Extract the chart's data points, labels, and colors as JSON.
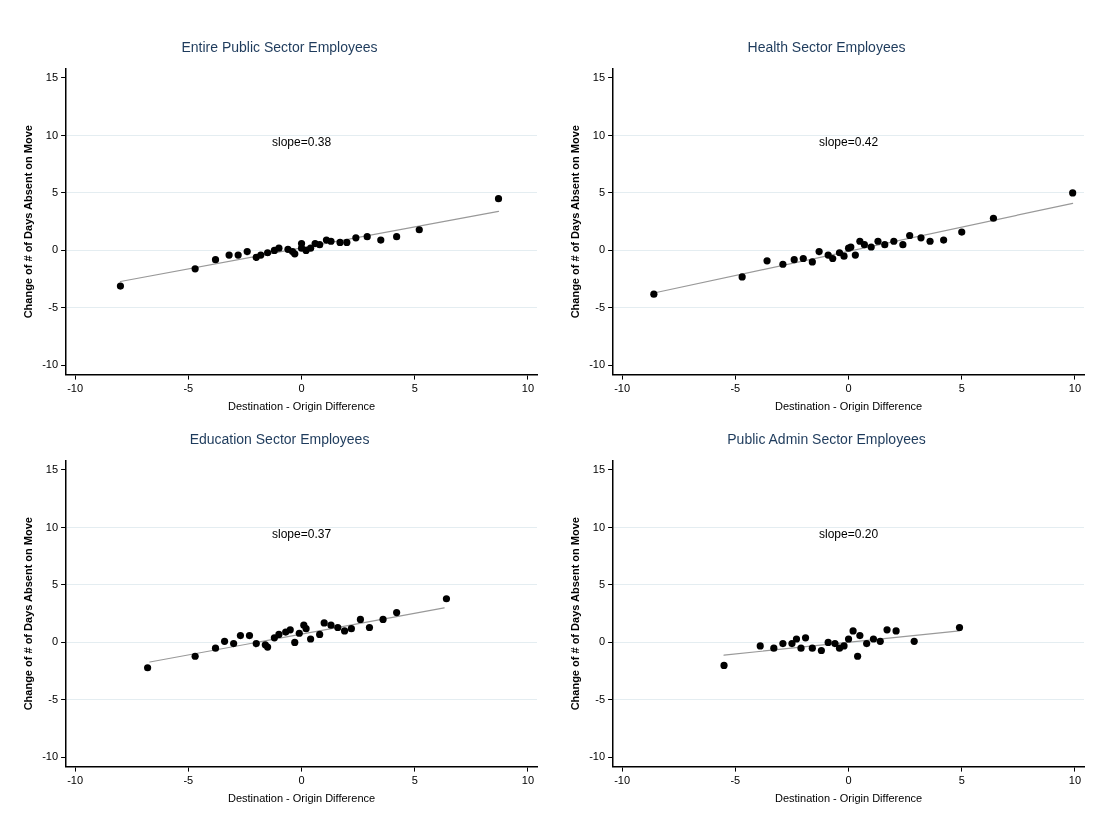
{
  "chart_data": [
    {
      "type": "scatter",
      "title": "Entire Public Sector Employees",
      "xlabel": "Destination - Origin Difference",
      "ylabel": "Change of # of Days Absent on Move",
      "annotations": [
        "slope=0.38"
      ],
      "xlim": [
        -10.4,
        10.4
      ],
      "xticks": [
        -10,
        -5,
        0,
        5,
        10
      ],
      "ylim": [
        -10.8,
        15.8
      ],
      "yticks": [
        -10,
        -5,
        0,
        5,
        10,
        15
      ],
      "grid": "y",
      "series": [
        {
          "color": "#000000",
          "marker": "circle",
          "x": [
            -8.0,
            -4.7,
            -3.8,
            -3.2,
            -2.8,
            -2.4,
            -2.0,
            -1.8,
            -1.5,
            -1.2,
            -1.0,
            -0.6,
            -0.4,
            -0.3,
            0.0,
            0.0,
            0.2,
            0.4,
            0.6,
            0.8,
            1.1,
            1.3,
            1.7,
            2.0,
            2.4,
            2.9,
            3.5,
            4.2,
            5.2,
            8.7
          ],
          "values": [
            -3.1,
            -1.6,
            -0.8,
            -0.4,
            -0.4,
            -0.1,
            -0.6,
            -0.4,
            -0.2,
            0.0,
            0.2,
            0.1,
            -0.1,
            -0.3,
            0.6,
            0.2,
            0.0,
            0.2,
            0.6,
            0.5,
            0.9,
            0.8,
            0.7,
            0.7,
            1.1,
            1.2,
            0.9,
            1.2,
            1.8,
            4.5
          ]
        },
        {
          "type": "line",
          "color": "#999999",
          "marker": "none",
          "x": [
            -8.0,
            8.7
          ],
          "values": [
            -2.7,
            3.4
          ]
        }
      ]
    },
    {
      "type": "scatter",
      "title": "Health Sector Employees",
      "xlabel": "Destination - Origin Difference",
      "ylabel": "Change of # of Days Absent on Move",
      "annotations": [
        "slope=0.42"
      ],
      "xlim": [
        -10.4,
        10.4
      ],
      "xticks": [
        -10,
        -5,
        0,
        5,
        10
      ],
      "ylim": [
        -10.8,
        15.8
      ],
      "yticks": [
        -10,
        -5,
        0,
        5,
        10,
        15
      ],
      "grid": "y",
      "series": [
        {
          "color": "#000000",
          "marker": "circle",
          "x": [
            -8.6,
            -4.7,
            -3.6,
            -2.9,
            -2.4,
            -2.0,
            -1.6,
            -1.3,
            -0.9,
            -0.7,
            -0.4,
            -0.2,
            0.0,
            0.1,
            0.3,
            0.5,
            0.7,
            1.0,
            1.3,
            1.6,
            2.0,
            2.4,
            2.7,
            3.2,
            3.6,
            4.2,
            5.0,
            6.4,
            9.9
          ],
          "values": [
            -3.8,
            -2.3,
            -0.9,
            -1.2,
            -0.8,
            -0.7,
            -1.0,
            -0.1,
            -0.4,
            -0.7,
            -0.2,
            -0.5,
            0.2,
            0.3,
            -0.4,
            0.8,
            0.5,
            0.3,
            0.8,
            0.5,
            0.8,
            0.5,
            1.3,
            1.1,
            0.8,
            0.9,
            1.6,
            2.8,
            5.0
          ]
        },
        {
          "type": "line",
          "color": "#999999",
          "marker": "none",
          "x": [
            -8.6,
            9.9
          ],
          "values": [
            -3.7,
            4.1
          ]
        }
      ]
    },
    {
      "type": "scatter",
      "title": "Education Sector Employees",
      "xlabel": "Destination - Origin Difference",
      "ylabel": "Change of # of Days Absent on Move",
      "annotations": [
        "slope=0.37"
      ],
      "xlim": [
        -10.4,
        10.4
      ],
      "xticks": [
        -10,
        -5,
        0,
        5,
        10
      ],
      "ylim": [
        -10.8,
        15.8
      ],
      "yticks": [
        -10,
        -5,
        0,
        5,
        10,
        15
      ],
      "grid": "y",
      "series": [
        {
          "color": "#000000",
          "marker": "circle",
          "x": [
            -6.8,
            -4.7,
            -3.8,
            -3.4,
            -3.0,
            -2.7,
            -2.3,
            -2.0,
            -1.6,
            -1.5,
            -1.2,
            -1.0,
            -0.7,
            -0.5,
            -0.3,
            -0.1,
            0.1,
            0.2,
            0.4,
            0.8,
            1.0,
            1.3,
            1.6,
            1.9,
            2.2,
            2.6,
            3.0,
            3.6,
            4.2,
            6.4
          ],
          "values": [
            -2.2,
            -1.2,
            -0.5,
            0.1,
            -0.1,
            0.6,
            0.6,
            -0.1,
            -0.2,
            -0.4,
            0.4,
            0.7,
            0.9,
            1.1,
            0.0,
            0.8,
            1.5,
            1.2,
            0.3,
            0.7,
            1.7,
            1.5,
            1.3,
            1.0,
            1.2,
            2.0,
            1.3,
            2.0,
            2.6,
            3.8
          ]
        },
        {
          "type": "line",
          "color": "#999999",
          "marker": "none",
          "x": [
            -6.7,
            6.3
          ],
          "values": [
            -1.7,
            3.0
          ]
        }
      ]
    },
    {
      "type": "scatter",
      "title": "Public Admin Sector Employees",
      "xlabel": "Destination - Origin Difference",
      "ylabel": "Change of # of Days Absent on Move",
      "annotations": [
        "slope=0.20"
      ],
      "xlim": [
        -10.4,
        10.4
      ],
      "xticks": [
        -10,
        -5,
        0,
        5,
        10
      ],
      "ylim": [
        -10.8,
        15.8
      ],
      "yticks": [
        -10,
        -5,
        0,
        5,
        10,
        15
      ],
      "grid": "y",
      "series": [
        {
          "color": "#000000",
          "marker": "circle",
          "x": [
            -5.5,
            -3.9,
            -3.3,
            -2.9,
            -2.5,
            -2.3,
            -2.1,
            -1.9,
            -1.6,
            -1.2,
            -0.9,
            -0.6,
            -0.4,
            -0.2,
            0.0,
            0.2,
            0.4,
            0.5,
            0.8,
            1.1,
            1.4,
            1.7,
            2.1,
            2.9,
            4.9
          ],
          "values": [
            -2.0,
            -0.3,
            -0.5,
            -0.1,
            -0.1,
            0.3,
            -0.5,
            0.4,
            -0.5,
            -0.7,
            0.0,
            -0.1,
            -0.5,
            -0.3,
            0.3,
            1.0,
            -1.2,
            0.6,
            -0.1,
            0.3,
            0.1,
            1.1,
            1.0,
            0.1,
            1.3
          ]
        },
        {
          "type": "line",
          "color": "#999999",
          "marker": "none",
          "x": [
            -5.5,
            4.9
          ],
          "values": [
            -1.1,
            1.0
          ]
        }
      ]
    }
  ]
}
